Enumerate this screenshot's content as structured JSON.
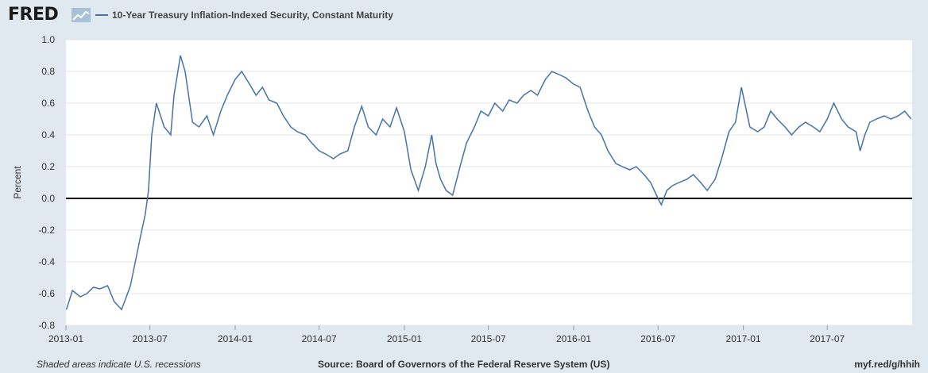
{
  "header": {
    "logo_text": "FRED",
    "logo_icon": "line-graph-icon",
    "legend_label": "10-Year Treasury Inflation-Indexed Security, Constant Maturity"
  },
  "footer": {
    "left": "Shaded areas indicate U.S. recessions",
    "source": "Source: Board of Governors of the Federal Reserve System (US)",
    "link": "myf.red/g/hhih"
  },
  "colors": {
    "series": "#4572a7",
    "background": "#e1e9f0",
    "plot_background": "#ffffff",
    "zero_line": "#000000"
  },
  "chart_data": {
    "type": "line",
    "title": "",
    "xlabel": "",
    "ylabel": "Percent",
    "ylim": [
      -0.8,
      1.0
    ],
    "yticks": [
      "1.0",
      "0.8",
      "0.6",
      "0.4",
      "0.2",
      "0.0",
      "-0.2",
      "-0.4",
      "-0.6",
      "-0.8"
    ],
    "xticks": [
      "2013-01",
      "2013-07",
      "2014-01",
      "2014-07",
      "2015-01",
      "2015-07",
      "2016-01",
      "2016-07",
      "2017-01",
      "2017-07"
    ],
    "xlim": [
      "2013-01-01",
      "2017-12-31"
    ],
    "grid": true,
    "series": [
      {
        "name": "10-Year Treasury Inflation-Indexed Security, Constant Maturity",
        "points": [
          [
            "2013-01-02",
            -0.7
          ],
          [
            "2013-01-15",
            -0.58
          ],
          [
            "2013-02-01",
            -0.62
          ],
          [
            "2013-02-15",
            -0.6
          ],
          [
            "2013-03-01",
            -0.56
          ],
          [
            "2013-03-15",
            -0.57
          ],
          [
            "2013-04-01",
            -0.55
          ],
          [
            "2013-04-15",
            -0.65
          ],
          [
            "2013-05-01",
            -0.7
          ],
          [
            "2013-05-10",
            -0.63
          ],
          [
            "2013-05-20",
            -0.55
          ],
          [
            "2013-06-01",
            -0.38
          ],
          [
            "2013-06-10",
            -0.25
          ],
          [
            "2013-06-21",
            -0.1
          ],
          [
            "2013-06-28",
            0.05
          ],
          [
            "2013-07-05",
            0.4
          ],
          [
            "2013-07-15",
            0.6
          ],
          [
            "2013-08-01",
            0.45
          ],
          [
            "2013-08-15",
            0.4
          ],
          [
            "2013-08-22",
            0.65
          ],
          [
            "2013-09-05",
            0.9
          ],
          [
            "2013-09-15",
            0.8
          ],
          [
            "2013-10-01",
            0.48
          ],
          [
            "2013-10-15",
            0.45
          ],
          [
            "2013-11-01",
            0.52
          ],
          [
            "2013-11-15",
            0.4
          ],
          [
            "2013-12-01",
            0.55
          ],
          [
            "2013-12-15",
            0.65
          ],
          [
            "2014-01-01",
            0.75
          ],
          [
            "2014-01-15",
            0.8
          ],
          [
            "2014-02-01",
            0.72
          ],
          [
            "2014-02-15",
            0.65
          ],
          [
            "2014-03-01",
            0.7
          ],
          [
            "2014-03-15",
            0.62
          ],
          [
            "2014-04-01",
            0.6
          ],
          [
            "2014-04-15",
            0.52
          ],
          [
            "2014-05-01",
            0.45
          ],
          [
            "2014-05-15",
            0.42
          ],
          [
            "2014-06-01",
            0.4
          ],
          [
            "2014-06-15",
            0.35
          ],
          [
            "2014-07-01",
            0.3
          ],
          [
            "2014-07-15",
            0.28
          ],
          [
            "2014-08-01",
            0.25
          ],
          [
            "2014-08-15",
            0.28
          ],
          [
            "2014-09-01",
            0.3
          ],
          [
            "2014-09-15",
            0.45
          ],
          [
            "2014-10-01",
            0.58
          ],
          [
            "2014-10-15",
            0.45
          ],
          [
            "2014-11-01",
            0.4
          ],
          [
            "2014-11-15",
            0.5
          ],
          [
            "2014-12-01",
            0.45
          ],
          [
            "2014-12-15",
            0.57
          ],
          [
            "2015-01-01",
            0.42
          ],
          [
            "2015-01-15",
            0.18
          ],
          [
            "2015-01-31",
            0.05
          ],
          [
            "2015-02-15",
            0.2
          ],
          [
            "2015-03-01",
            0.4
          ],
          [
            "2015-03-10",
            0.22
          ],
          [
            "2015-03-20",
            0.12
          ],
          [
            "2015-04-01",
            0.05
          ],
          [
            "2015-04-15",
            0.02
          ],
          [
            "2015-05-01",
            0.2
          ],
          [
            "2015-05-15",
            0.35
          ],
          [
            "2015-06-01",
            0.45
          ],
          [
            "2015-06-15",
            0.55
          ],
          [
            "2015-07-01",
            0.52
          ],
          [
            "2015-07-15",
            0.6
          ],
          [
            "2015-08-01",
            0.55
          ],
          [
            "2015-08-15",
            0.62
          ],
          [
            "2015-09-01",
            0.6
          ],
          [
            "2015-09-15",
            0.65
          ],
          [
            "2015-10-01",
            0.68
          ],
          [
            "2015-10-15",
            0.65
          ],
          [
            "2015-11-01",
            0.75
          ],
          [
            "2015-11-15",
            0.8
          ],
          [
            "2015-12-01",
            0.78
          ],
          [
            "2015-12-15",
            0.76
          ],
          [
            "2016-01-01",
            0.72
          ],
          [
            "2016-01-15",
            0.7
          ],
          [
            "2016-02-01",
            0.55
          ],
          [
            "2016-02-15",
            0.45
          ],
          [
            "2016-03-01",
            0.4
          ],
          [
            "2016-03-15",
            0.3
          ],
          [
            "2016-04-01",
            0.22
          ],
          [
            "2016-04-15",
            0.2
          ],
          [
            "2016-05-01",
            0.18
          ],
          [
            "2016-05-15",
            0.2
          ],
          [
            "2016-06-01",
            0.15
          ],
          [
            "2016-06-15",
            0.1
          ],
          [
            "2016-07-01",
            0.0
          ],
          [
            "2016-07-08",
            -0.04
          ],
          [
            "2016-07-20",
            0.05
          ],
          [
            "2016-08-01",
            0.08
          ],
          [
            "2016-08-15",
            0.1
          ],
          [
            "2016-09-01",
            0.12
          ],
          [
            "2016-09-15",
            0.15
          ],
          [
            "2016-10-01",
            0.1
          ],
          [
            "2016-10-15",
            0.05
          ],
          [
            "2016-11-01",
            0.12
          ],
          [
            "2016-11-15",
            0.25
          ],
          [
            "2016-12-01",
            0.42
          ],
          [
            "2016-12-15",
            0.48
          ],
          [
            "2016-12-28",
            0.7
          ],
          [
            "2017-01-15",
            0.45
          ],
          [
            "2017-02-01",
            0.42
          ],
          [
            "2017-02-15",
            0.45
          ],
          [
            "2017-03-01",
            0.55
          ],
          [
            "2017-03-15",
            0.5
          ],
          [
            "2017-04-01",
            0.45
          ],
          [
            "2017-04-15",
            0.4
          ],
          [
            "2017-05-01",
            0.45
          ],
          [
            "2017-05-15",
            0.48
          ],
          [
            "2017-06-01",
            0.45
          ],
          [
            "2017-06-15",
            0.42
          ],
          [
            "2017-07-01",
            0.5
          ],
          [
            "2017-07-15",
            0.6
          ],
          [
            "2017-08-01",
            0.5
          ],
          [
            "2017-08-15",
            0.45
          ],
          [
            "2017-09-01",
            0.42
          ],
          [
            "2017-09-10",
            0.3
          ],
          [
            "2017-09-20",
            0.4
          ],
          [
            "2017-10-01",
            0.48
          ],
          [
            "2017-10-15",
            0.5
          ],
          [
            "2017-11-01",
            0.52
          ],
          [
            "2017-11-15",
            0.5
          ],
          [
            "2017-12-01",
            0.52
          ],
          [
            "2017-12-15",
            0.55
          ],
          [
            "2017-12-29",
            0.5
          ]
        ]
      }
    ]
  }
}
